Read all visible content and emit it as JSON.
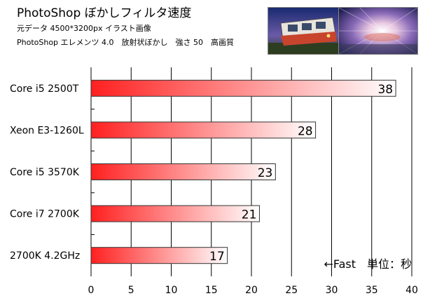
{
  "header": {
    "title": "PhotoShop ぼかしフィルタ速度",
    "subtitle_lines": [
      "元データ 4500*3200px イラスト画像",
      "PhotoShop エレメンツ 4.0　放射状ぼかし　強さ 50　高画質"
    ]
  },
  "thumbnails": [
    {
      "name": "original-train-image"
    },
    {
      "name": "radial-blur-train-image"
    }
  ],
  "chart_data": {
    "type": "bar",
    "orientation": "horizontal",
    "categories": [
      "Core i5 2500T",
      "Xeon E3-1260L",
      "Core i5 3570K",
      "Core i7 2700K",
      "2700K 4.2GHz"
    ],
    "values": [
      38,
      28,
      23,
      21,
      17
    ],
    "xlim": [
      0,
      40
    ],
    "xticks": [
      0,
      5,
      10,
      15,
      20,
      25,
      30,
      35,
      40
    ],
    "grid": true,
    "annotation": "←Fast　単位：秒",
    "colors": {
      "bar_start": "#ff2020",
      "bar_end": "#ffffff"
    }
  }
}
